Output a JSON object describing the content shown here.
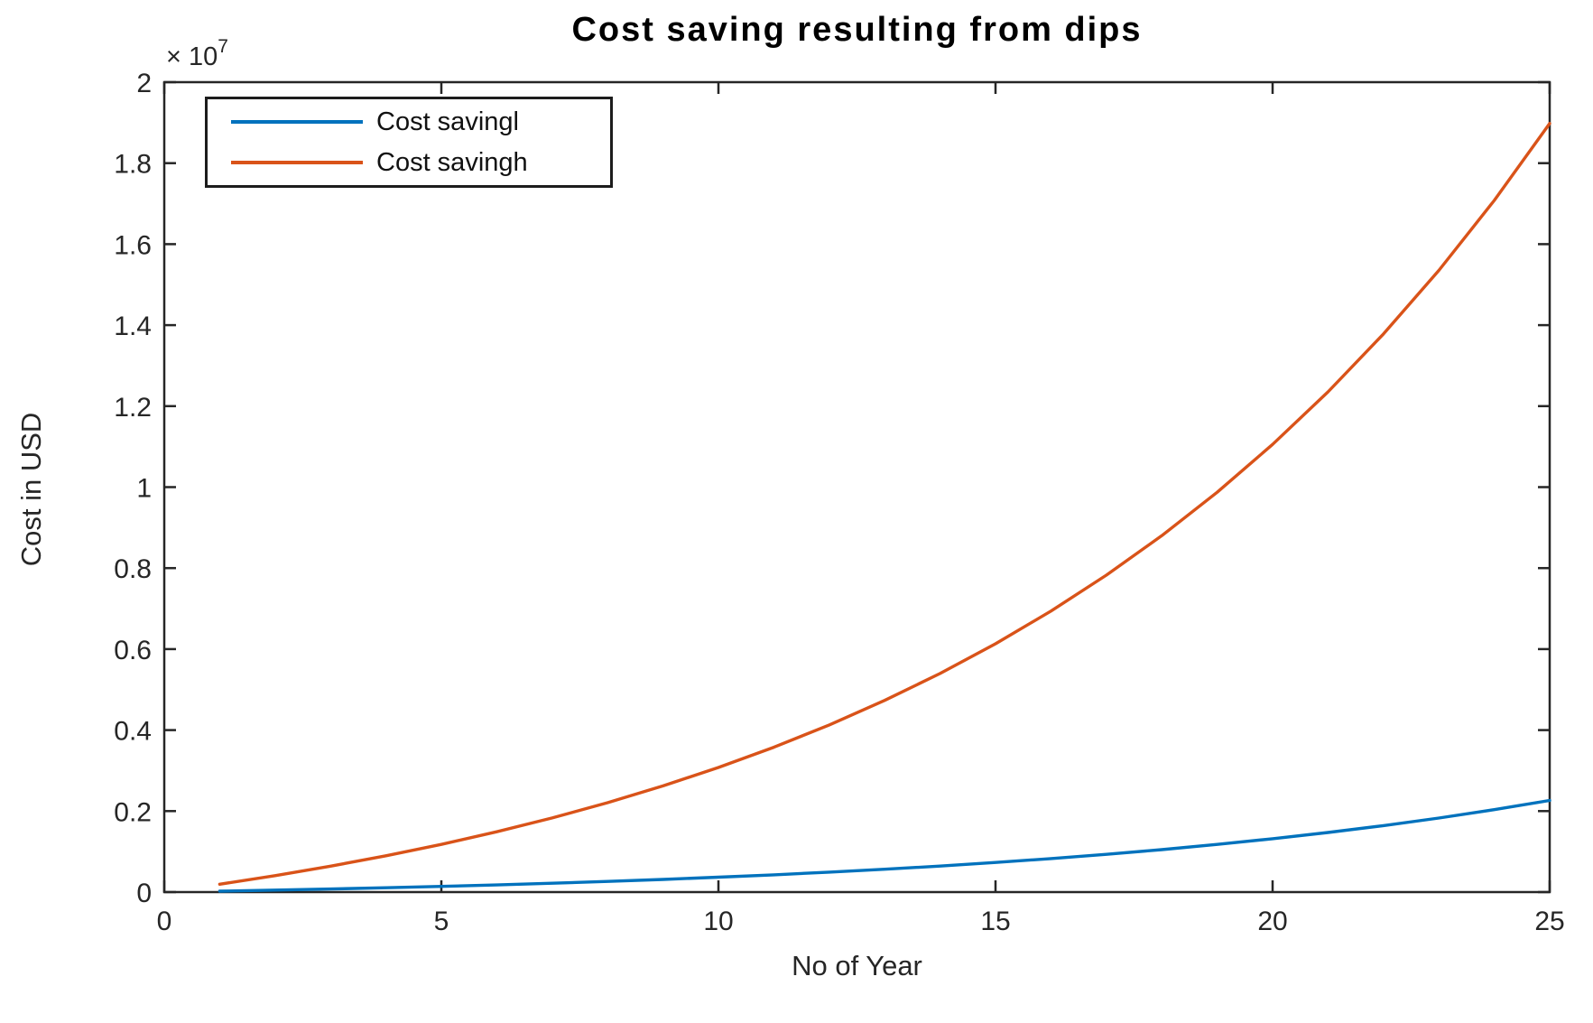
{
  "colors": {
    "background": "#ffffff",
    "axis": "#262626",
    "tick_text": "#262626",
    "title_text": "#000000",
    "legend_border": "#1c1c1c",
    "series_blue": "#0072BD",
    "series_orange": "#D95319"
  },
  "chart_data": {
    "type": "line",
    "title": "Cost saving resulting from dips",
    "xlabel": "No of Year",
    "ylabel": "Cost in USD",
    "y_exponent_base": "× 10",
    "y_exponent_power": "7",
    "xlim": [
      0,
      25
    ],
    "ylim": [
      0,
      20000000
    ],
    "x_ticks": [
      0,
      5,
      10,
      15,
      20,
      25
    ],
    "y_ticks": [
      0,
      2000000,
      4000000,
      6000000,
      8000000,
      10000000,
      12000000,
      14000000,
      16000000,
      18000000,
      20000000
    ],
    "y_tick_labels": [
      "0",
      "0.2",
      "0.4",
      "0.6",
      "0.8",
      "1",
      "1.2",
      "1.4",
      "1.6",
      "1.8",
      "2"
    ],
    "grid": false,
    "legend_position": "top-left",
    "x": [
      1,
      2,
      3,
      4,
      5,
      6,
      7,
      8,
      9,
      10,
      11,
      12,
      13,
      14,
      15,
      16,
      17,
      18,
      19,
      20,
      21,
      22,
      23,
      24,
      25
    ],
    "series": [
      {
        "name": "Cost savingl",
        "color": "#0072BD",
        "values": [
          23000,
          48000,
          76000,
          107000,
          140000,
          177000,
          218000,
          263000,
          312000,
          367000,
          426000,
          492000,
          564000,
          643000,
          731000,
          827000,
          933000,
          1049000,
          1177000,
          1317000,
          1472000,
          1642000,
          1829000,
          2035000,
          2262000
        ]
      },
      {
        "name": "Cost savingh",
        "color": "#D95319",
        "values": [
          193000,
          405000,
          639000,
          896000,
          1178000,
          1489000,
          1831000,
          2207000,
          2621000,
          3076000,
          3577000,
          4127000,
          4733000,
          5399000,
          6132000,
          6938000,
          7825000,
          8801000,
          9874000,
          11054000,
          12352000,
          13781000,
          15352000,
          17080000,
          18981000
        ]
      }
    ]
  }
}
